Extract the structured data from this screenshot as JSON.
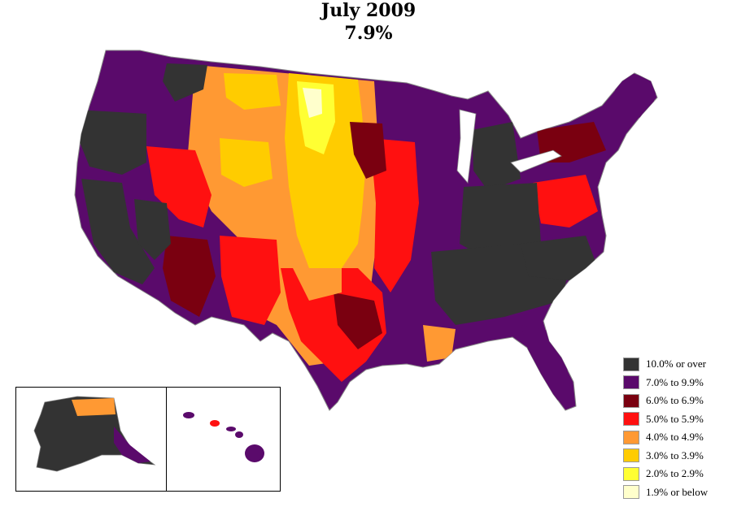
{
  "header": {
    "title": "July 2009",
    "subtitle": "7.9%"
  },
  "map": {
    "region": "United States counties",
    "insets": [
      "Alaska",
      "Hawaii"
    ]
  },
  "legend": {
    "placement": "bottom-right",
    "items": [
      {
        "label": "10.0% or over",
        "color": "#333333"
      },
      {
        "label": "7.0% to 9.9%",
        "color": "#5a0a6b"
      },
      {
        "label": "6.0% to 6.9%",
        "color": "#7a0010"
      },
      {
        "label": "5.0% to 5.9%",
        "color": "#ff1010"
      },
      {
        "label": "4.0% to 4.9%",
        "color": "#ff9933"
      },
      {
        "label": "3.0% to 3.9%",
        "color": "#ffcc00"
      },
      {
        "label": "2.0% to 2.9%",
        "color": "#ffff33"
      },
      {
        "label": "1.9% or below",
        "color": "#ffffcc"
      }
    ]
  }
}
